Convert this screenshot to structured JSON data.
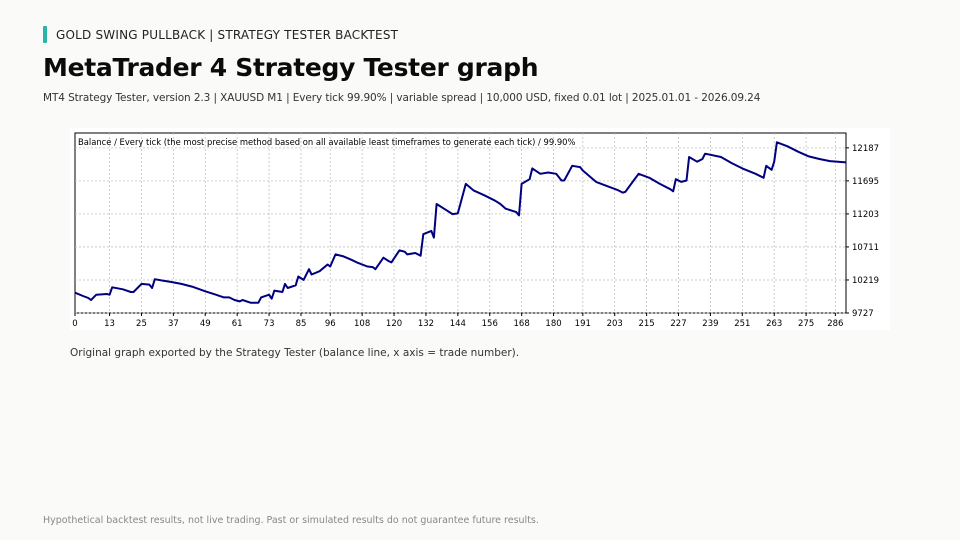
{
  "header": {
    "kicker": "GOLD SWING PULLBACK  |  STRATEGY TESTER BACKTEST",
    "title": "MetaTrader 4 Strategy Tester graph",
    "subtitle": "MT4 Strategy Tester, version 2.3  |  XAUUSD M1  |  Every tick 99.90%  |  variable spread  |  10,000 USD, fixed 0.01 lot  |  2025.01.01 - 2026.09.24"
  },
  "caption": "Original graph exported by the Strategy Tester (balance line, x axis = trade number).",
  "footer": "Hypothetical backtest results, not live trading. Past or simulated results do not guarantee future results.",
  "colors": {
    "accent": "#2bb5a8",
    "line": "#000080",
    "grid": "#c0c0c0"
  },
  "chart_data": {
    "type": "line",
    "title": "Balance / Every tick (the most precise method based on all available least timeframes to generate each tick)  /  99.90%",
    "xlabel": "",
    "ylabel": "",
    "xlim": [
      0,
      290
    ],
    "ylim": [
      9727,
      12408
    ],
    "grid": true,
    "x_ticks": [
      "0",
      "13",
      "25",
      "37",
      "49",
      "61",
      "73",
      "85",
      "96",
      "108",
      "120",
      "132",
      "144",
      "156",
      "168",
      "180",
      "191",
      "203",
      "215",
      "227",
      "239",
      "251",
      "263",
      "275",
      "286"
    ],
    "y_ticks": [
      "12187",
      "11695",
      "11203",
      "10711",
      "10219",
      "9727"
    ],
    "series": [
      {
        "name": "",
        "x": [
          0,
          3,
          5,
          6,
          8,
          12,
          13,
          14,
          18,
          21,
          22,
          25,
          28,
          29,
          30,
          33,
          36,
          40,
          44,
          49,
          53,
          56,
          58,
          60,
          62,
          63,
          66,
          69,
          70,
          73,
          74,
          75,
          78,
          79,
          80,
          83,
          84,
          86,
          88,
          89,
          92,
          95,
          96,
          98,
          101,
          104,
          106,
          110,
          112,
          113,
          116,
          118,
          119,
          122,
          124,
          125,
          128,
          130,
          131,
          134,
          135,
          136,
          140,
          142,
          144,
          147,
          150,
          154,
          158,
          160,
          162,
          166,
          167,
          168,
          171,
          172,
          175,
          178,
          181,
          183,
          184,
          187,
          190,
          191,
          196,
          200,
          204,
          206,
          207,
          212,
          216,
          220,
          224,
          225,
          226,
          228,
          230,
          231,
          234,
          236,
          237,
          243,
          247,
          251,
          256,
          259,
          260,
          262,
          263,
          264,
          268,
          272,
          276,
          280,
          284,
          290
        ],
        "y": [
          10030,
          9980,
          9950,
          9920,
          10000,
          10010,
          10000,
          10110,
          10080,
          10040,
          10040,
          10160,
          10150,
          10100,
          10230,
          10210,
          10190,
          10160,
          10120,
          10050,
          10000,
          9960,
          9960,
          9920,
          9900,
          9920,
          9880,
          9880,
          9960,
          10000,
          9940,
          10060,
          10040,
          10160,
          10100,
          10140,
          10270,
          10220,
          10380,
          10300,
          10350,
          10450,
          10420,
          10600,
          10570,
          10520,
          10480,
          10420,
          10410,
          10380,
          10550,
          10500,
          10480,
          10660,
          10640,
          10600,
          10620,
          10580,
          10900,
          10950,
          10850,
          11350,
          11250,
          11200,
          11210,
          11650,
          11550,
          11480,
          11400,
          11350,
          11280,
          11230,
          11180,
          11650,
          11720,
          11880,
          11800,
          11820,
          11800,
          11700,
          11700,
          11920,
          11900,
          11850,
          11680,
          11620,
          11560,
          11520,
          11530,
          11800,
          11740,
          11650,
          11570,
          11540,
          11720,
          11680,
          11700,
          12050,
          11980,
          12020,
          12100,
          12050,
          11960,
          11880,
          11800,
          11740,
          11920,
          11860,
          11980,
          12270,
          12210,
          12130,
          12060,
          12020,
          11990,
          11970
        ]
      }
    ]
  }
}
